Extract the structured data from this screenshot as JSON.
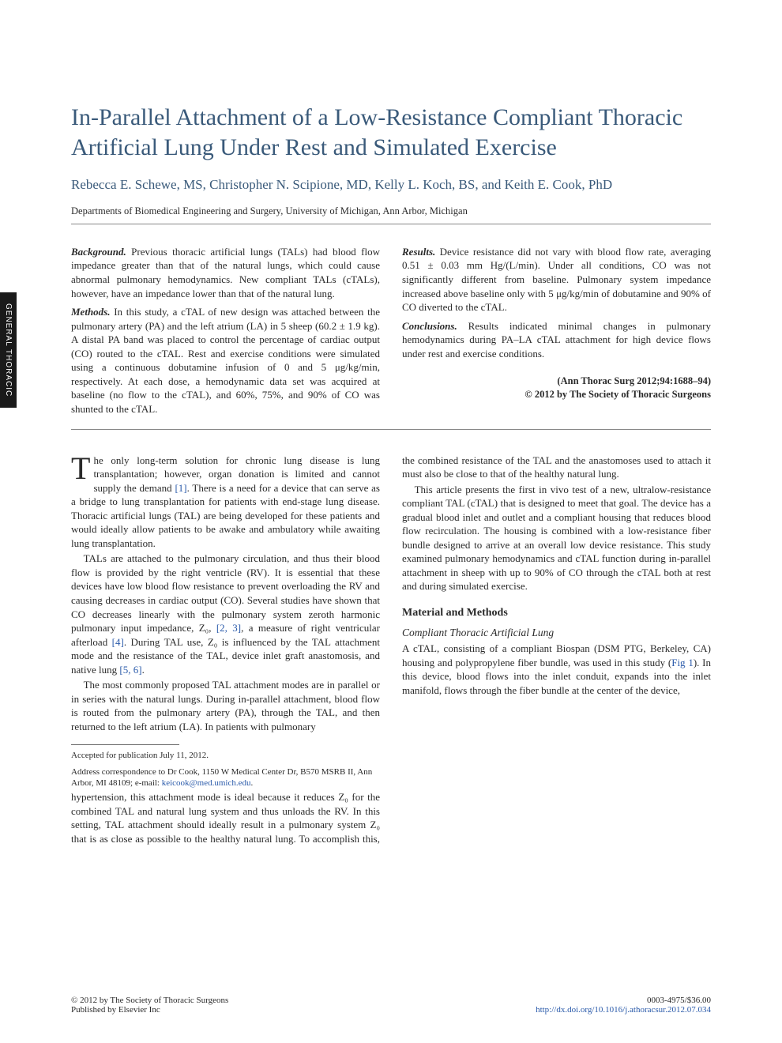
{
  "sideTab": "GENERAL THORACIC",
  "title": "In-Parallel Attachment of a Low-Resistance Compliant Thoracic Artificial Lung Under Rest and Simulated Exercise",
  "authors": "Rebecca E. Schewe, MS, Christopher N. Scipione, MD, Kelly L. Koch, BS, and Keith E. Cook, PhD",
  "affiliation": "Departments of Biomedical Engineering and Surgery, University of Michigan, Ann Arbor, Michigan",
  "abstract": {
    "background": {
      "label": "Background.",
      "text": " Previous thoracic artificial lungs (TALs) had blood flow impedance greater than that of the natural lungs, which could cause abnormal pulmonary hemodynamics. New compliant TALs (cTALs), however, have an impedance lower than that of the natural lung."
    },
    "methods": {
      "label": "Methods.",
      "text": " In this study, a cTAL of new design was attached between the pulmonary artery (PA) and the left atrium (LA) in 5 sheep (60.2 ± 1.9 kg). A distal PA band was placed to control the percentage of cardiac output (CO) routed to the cTAL. Rest and exercise conditions were simulated using a continuous dobutamine infusion of 0 and 5 μg/kg/min, respectively. At each dose, a hemodynamic data set was acquired at baseline (no flow to the cTAL), and 60%, 75%, and 90% of CO was shunted to the cTAL."
    },
    "results": {
      "label": "Results.",
      "text": " Device resistance did not vary with blood flow rate, averaging 0.51 ± 0.03 mm Hg/(L/min). Under all conditions, CO was not significantly different from baseline. Pulmonary system impedance increased above baseline only with 5 μg/kg/min of dobutamine and 90% of CO diverted to the cTAL."
    },
    "conclusions": {
      "label": "Conclusions.",
      "text": " Results indicated minimal changes in pulmonary hemodynamics during PA–LA cTAL attachment for high device flows under rest and exercise conditions."
    },
    "citation": "(Ann Thorac Surg 2012;94:1688–94)",
    "copyright": "© 2012 by The Society of Thoracic Surgeons"
  },
  "body": {
    "p1_drop": "T",
    "p1": "he only long-term solution for chronic lung disease is lung transplantation; however, organ donation is limited and cannot supply the demand ",
    "p1_ref": "[1]",
    "p1b": ". There is a need for a device that can serve as a bridge to lung transplantation for patients with end-stage lung disease. Thoracic artificial lungs (TAL) are being developed for these patients and would ideally allow patients to be awake and ambulatory while awaiting lung transplantation.",
    "p2a": "TALs are attached to the pulmonary circulation, and thus their blood flow is provided by the right ventricle (RV). It is essential that these devices have low blood flow resistance to prevent overloading the RV and causing decreases in cardiac output (CO). Several studies have shown that CO decreases linearly with the pulmonary system zeroth harmonic pulmonary input impedance, Z₀, ",
    "p2_ref1": "[2, 3]",
    "p2b": ", a measure of right ventricular afterload ",
    "p2_ref2": "[4]",
    "p2c": ". During TAL use, Z₀ is influenced by the TAL attachment mode and the resistance of the TAL, device inlet graft anastomosis, and native lung ",
    "p2_ref3": "[5, 6]",
    "p2d": ".",
    "p3": "The most commonly proposed TAL attachment modes are in parallel or in series with the natural lungs. During in-parallel attachment, blood flow is routed from the pulmonary artery (PA), through the TAL, and then returned to the left atrium (LA). In patients with pulmonary",
    "p4": "hypertension, this attachment mode is ideal because it reduces Z₀ for the combined TAL and natural lung system and thus unloads the RV. In this setting, TAL attachment should ideally result in a pulmonary system Z₀ that is as close as possible to the healthy natural lung. To accomplish this, the combined resistance of the TAL and the anastomoses used to attach it must also be close to that of the healthy natural lung.",
    "p5": "This article presents the first in vivo test of a new, ultralow-resistance compliant TAL (cTAL) that is designed to meet that goal. The device has a gradual blood inlet and outlet and a compliant housing that reduces blood flow recirculation. The housing is combined with a low-resistance fiber bundle designed to arrive at an overall low device resistance. This study examined pulmonary hemodynamics and cTAL function during in-parallel attachment in sheep with up to 90% of CO through the cTAL both at rest and during simulated exercise.",
    "h1": "Material and Methods",
    "h2": "Compliant Thoracic Artificial Lung",
    "p6a": "A cTAL, consisting of a compliant Biospan (DSM PTG, Berkeley, CA) housing and polypropylene fiber bundle, was used in this study (",
    "p6_ref": "Fig 1",
    "p6b": "). In this device, blood flows into the inlet conduit, expands into the inlet manifold, flows through the fiber bundle at the center of the device,"
  },
  "footnotes": {
    "accepted": "Accepted for publication July 11, 2012.",
    "correspondence_a": "Address correspondence to Dr Cook, 1150 W Medical Center Dr, B570 MSRB II, Ann Arbor, MI 48109; e-mail: ",
    "email": "keicook@med.umich.edu",
    "correspondence_b": "."
  },
  "footer": {
    "left1": "© 2012 by The Society of Thoracic Surgeons",
    "left2": "Published by Elsevier Inc",
    "right1": "0003-4975/$36.00",
    "doi": "http://dx.doi.org/10.1016/j.athoracsur.2012.07.034"
  },
  "colors": {
    "heading": "#3a5a7a",
    "link": "#2a5aaa",
    "text": "#2a2a2a",
    "tab_bg": "#1a1a1a",
    "tab_fg": "#ffffff"
  }
}
